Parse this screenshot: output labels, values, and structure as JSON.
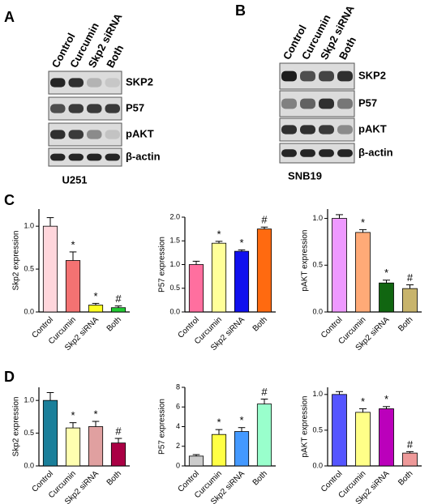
{
  "panels": [
    "A",
    "B",
    "C",
    "D"
  ],
  "blots": [
    {
      "lanes": [
        "Control",
        "Curcumin",
        "Skp2 siRNA",
        "Both"
      ],
      "proteins": [
        "SKP2",
        "P57",
        "pAKT",
        "β-actin"
      ],
      "cell_line": "U251"
    },
    {
      "lanes": [
        "Control",
        "Curcumin",
        "Skp2 siRNA",
        "Both"
      ],
      "proteins": [
        "SKP2",
        "P57",
        "pAKT",
        "β-actin"
      ],
      "cell_line": "SNB19"
    }
  ],
  "chart_data": [
    {
      "type": "bar",
      "ylabel": "Skp2 expression",
      "categories": [
        "Control",
        "Curcumin",
        "Skp2 siRNA",
        "Both"
      ],
      "values": [
        1.0,
        0.6,
        0.08,
        0.05
      ],
      "errors": [
        0.1,
        0.1,
        0.02,
        0.02
      ],
      "annotations": [
        null,
        "*",
        "*",
        "#"
      ],
      "colors": [
        "#ffd6dc",
        "#f47272",
        "#ffff22",
        "#22cc33"
      ],
      "ylim": [
        0,
        1.2
      ],
      "yticks": [
        {
          "value": 0,
          "label": "0.0"
        },
        {
          "value": 0.5,
          "label": "0.5"
        },
        {
          "value": 1,
          "label": "1.0"
        }
      ]
    },
    {
      "type": "bar",
      "ylabel": "P57 expression",
      "categories": [
        "Control",
        "Curcumin",
        "Skp2 siRNA",
        "Both"
      ],
      "values": [
        1.0,
        1.45,
        1.28,
        1.75
      ],
      "errors": [
        0.07,
        0.04,
        0.03,
        0.04
      ],
      "annotations": [
        null,
        "*",
        "*",
        "#"
      ],
      "colors": [
        "#ff6f9f",
        "#ffff99",
        "#1010ee",
        "#ff6a10"
      ],
      "ylim": [
        0,
        2
      ],
      "yticks": [
        {
          "value": 0,
          "label": "0.0"
        },
        {
          "value": 0.5,
          "label": "0.5"
        },
        {
          "value": 1,
          "label": "1.0"
        },
        {
          "value": 1.5,
          "label": "1.5"
        },
        {
          "value": 2,
          "label": "2.0"
        }
      ]
    },
    {
      "type": "bar",
      "ylabel": "pAKT expression",
      "categories": [
        "Control",
        "Curcumin",
        "Skp2 siRNA",
        "Both"
      ],
      "values": [
        1.0,
        0.85,
        0.31,
        0.25
      ],
      "errors": [
        0.04,
        0.03,
        0.03,
        0.04
      ],
      "annotations": [
        null,
        "*",
        "*",
        "#"
      ],
      "colors": [
        "#ee99ff",
        "#ffaa77",
        "#116611",
        "#c8b46c"
      ],
      "ylim": [
        0,
        1.1
      ],
      "yticks": [
        {
          "value": 0,
          "label": "0.0"
        },
        {
          "value": 0.5,
          "label": "0.5"
        },
        {
          "value": 1,
          "label": "1.0"
        }
      ]
    },
    {
      "type": "bar",
      "ylabel": "Skp2 expression",
      "categories": [
        "Control",
        "Curcumin",
        "Skp2 siRNA",
        "Both"
      ],
      "values": [
        1.0,
        0.58,
        0.6,
        0.35
      ],
      "errors": [
        0.12,
        0.08,
        0.08,
        0.07
      ],
      "annotations": [
        null,
        "*",
        "*",
        "#"
      ],
      "colors": [
        "#1a7f9a",
        "#ffffb0",
        "#e0a0a0",
        "#aa0044"
      ],
      "ylim": [
        0,
        1.2
      ],
      "yticks": [
        {
          "value": 0,
          "label": "0.0"
        },
        {
          "value": 0.5,
          "label": "0.5"
        },
        {
          "value": 1,
          "label": "1.0"
        }
      ]
    },
    {
      "type": "bar",
      "ylabel": "P57 expression",
      "categories": [
        "Control",
        "Curcumin",
        "Skp2 siRNA",
        "Both"
      ],
      "values": [
        1.0,
        3.2,
        3.5,
        6.3
      ],
      "errors": [
        0.15,
        0.5,
        0.4,
        0.5
      ],
      "annotations": [
        null,
        "*",
        "*",
        "#"
      ],
      "colors": [
        "#cccccc",
        "#ffff44",
        "#4499ff",
        "#99ffcc"
      ],
      "ylim": [
        0,
        8
      ],
      "yticks": [
        0,
        2,
        4,
        6,
        8
      ]
    },
    {
      "type": "bar",
      "ylabel": "pAKT expression",
      "categories": [
        "Control",
        "Curcumin",
        "Skp2 siRNA",
        "Both"
      ],
      "values": [
        1.0,
        0.75,
        0.8,
        0.18
      ],
      "errors": [
        0.04,
        0.05,
        0.03,
        0.02
      ],
      "annotations": [
        null,
        "*",
        "*",
        "#"
      ],
      "colors": [
        "#5555ff",
        "#ffff88",
        "#bb00bb",
        "#ee9999"
      ],
      "ylim": [
        0,
        1.1
      ],
      "yticks": [
        {
          "value": 0,
          "label": "0.0"
        },
        {
          "value": 0.5,
          "label": "0.5"
        },
        {
          "value": 1,
          "label": "1.0"
        }
      ]
    }
  ]
}
